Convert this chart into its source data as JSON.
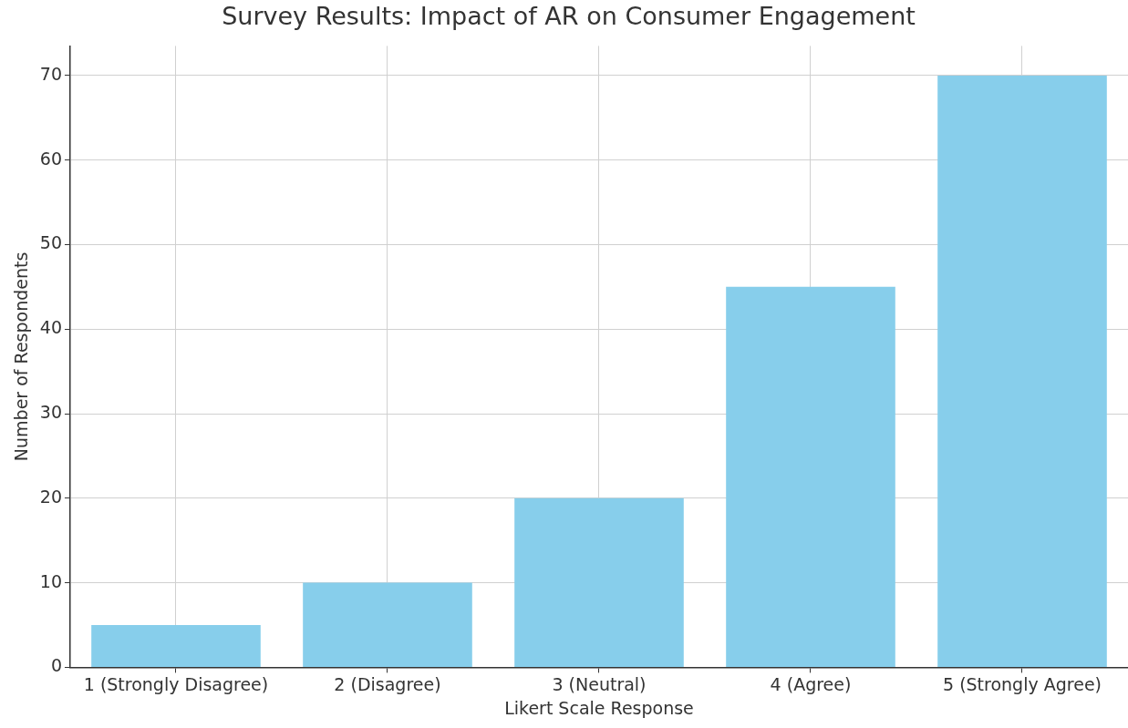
{
  "chart_data": {
    "type": "bar",
    "title": "Survey Results: Impact of AR on Consumer Engagement",
    "xlabel": "Likert Scale Response",
    "ylabel": "Number of Respondents",
    "categories": [
      "1 (Strongly Disagree)",
      "2 (Disagree)",
      "3 (Neutral)",
      "4 (Agree)",
      "5 (Strongly Agree)"
    ],
    "values": [
      5,
      10,
      20,
      45,
      70
    ],
    "color": "#87ceeb",
    "ylim": [
      0,
      73.5
    ],
    "yticks": [
      0,
      10,
      20,
      30,
      40,
      50,
      60,
      70
    ],
    "grid": true
  }
}
